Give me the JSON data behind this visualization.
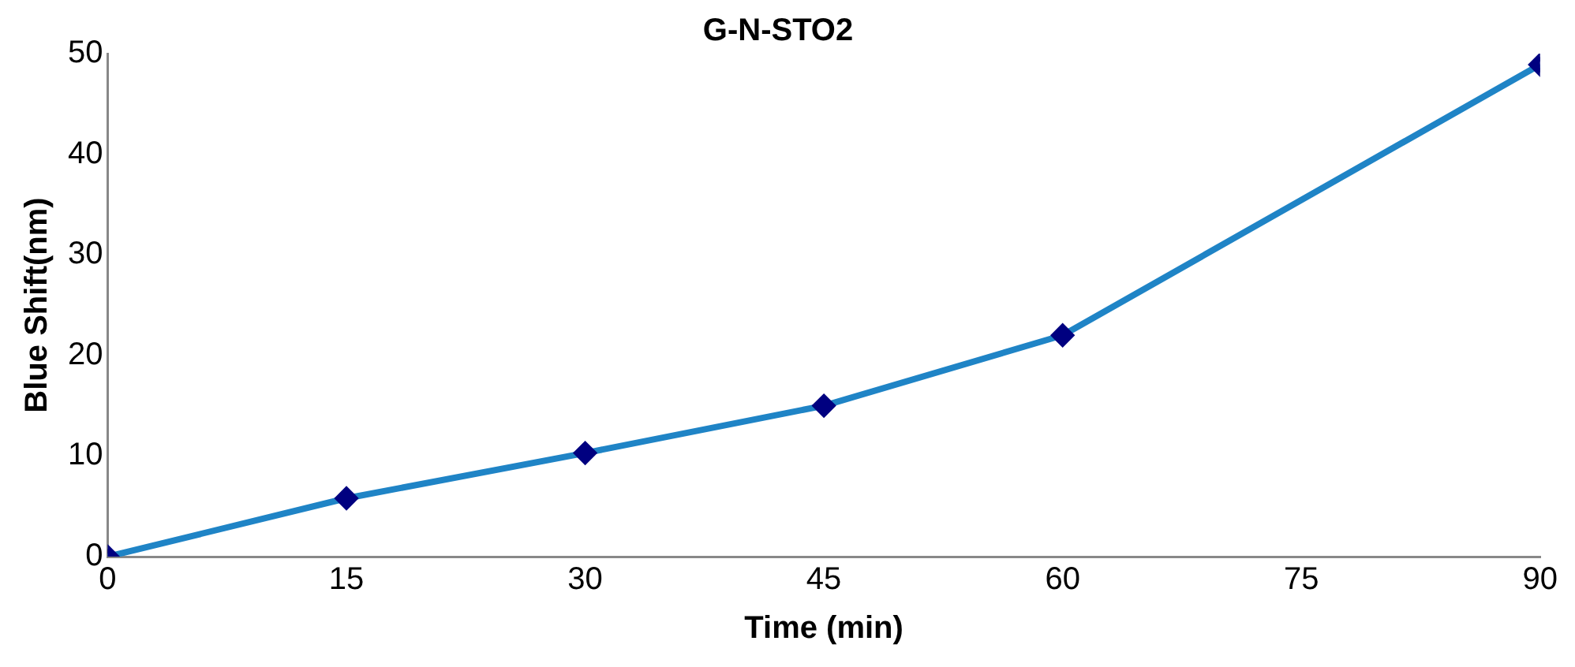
{
  "chart_data": {
    "type": "line",
    "title": "G-N-STO2",
    "xlabel": "Time (min)",
    "ylabel": "Blue Shift(nm)",
    "x": [
      0,
      15,
      30,
      45,
      60,
      90
    ],
    "series": [
      {
        "color": "#1f84c6",
        "values": [
          0,
          5.8,
          10.3,
          15.0,
          22.0,
          48.9
        ]
      }
    ],
    "xlim": [
      0,
      90
    ],
    "xticks": [
      0,
      15,
      30,
      45,
      60,
      75,
      90
    ],
    "ylim": [
      0,
      50
    ],
    "yticks": [
      0,
      10,
      20,
      30,
      40,
      50
    ],
    "grid": false,
    "legend": false,
    "marker": "diamond",
    "line_style": "solid"
  }
}
